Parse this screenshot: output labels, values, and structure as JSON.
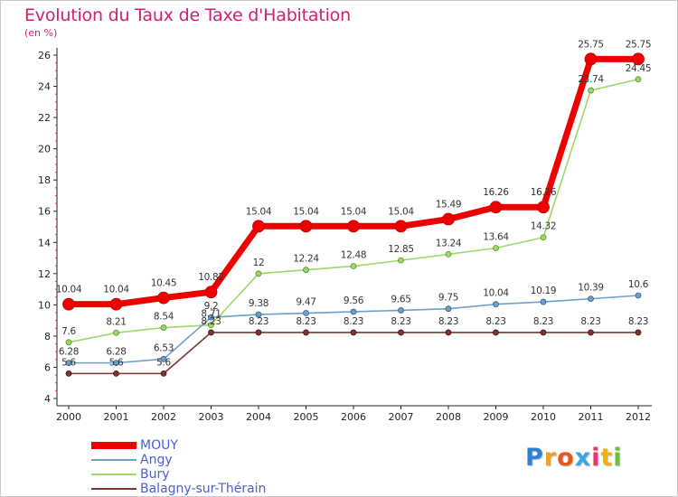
{
  "header": {
    "title": "Evolution du Taux de Taxe d'Habitation",
    "subtitle": "(en %)"
  },
  "chart_data": {
    "type": "line",
    "title": "Evolution du Taux de Taxe d'Habitation",
    "ylabel": "(en %)",
    "xlabel": "",
    "ylim": [
      4,
      26
    ],
    "yticks": [
      4,
      6,
      8,
      10,
      12,
      14,
      16,
      18,
      20,
      22,
      24,
      26
    ],
    "grid": false,
    "legend_position": "bottom-left",
    "categories": [
      "2000",
      "2001",
      "2002",
      "2003",
      "2004",
      "2005",
      "2006",
      "2007",
      "2008",
      "2009",
      "2010",
      "2011",
      "2012"
    ],
    "series": [
      {
        "name": "MOUY",
        "color": "#ee0000",
        "values": [
          10.04,
          10.04,
          10.45,
          10.82,
          15.04,
          15.04,
          15.04,
          15.04,
          15.49,
          16.26,
          16.26,
          25.75,
          25.75
        ],
        "labels": [
          "10.04",
          "10.04",
          "10.45",
          "10.82",
          "15.04",
          "15.04",
          "15.04",
          "15.04",
          "15.49",
          "16.26",
          "16.26",
          "25.75",
          "25.75"
        ]
      },
      {
        "name": "Angy",
        "color": "#6f9ec9",
        "values": [
          6.28,
          6.28,
          6.53,
          9.2,
          9.38,
          9.47,
          9.56,
          9.65,
          9.75,
          10.04,
          10.19,
          10.39,
          10.6
        ],
        "labels": [
          "6.28",
          "6.28",
          "6.53",
          "9.2",
          "9.38",
          "9.47",
          "9.56",
          "9.65",
          "9.75",
          "10.04",
          "10.19",
          "10.39",
          "10.6"
        ]
      },
      {
        "name": "Bury",
        "color": "#9ed86a",
        "values": [
          7.6,
          8.21,
          8.54,
          8.71,
          12,
          12.24,
          12.48,
          12.85,
          13.24,
          13.64,
          14.32,
          23.74,
          24.45
        ],
        "labels": [
          "7.6",
          "8.21",
          "8.54",
          "8.71",
          "12",
          "12.24",
          "12.48",
          "12.85",
          "13.24",
          "13.64",
          "14.32",
          "23.74",
          "24.45"
        ]
      },
      {
        "name": "Balagny-sur-Thérain",
        "color": "#7b3535",
        "values": [
          5.6,
          5.6,
          5.6,
          8.23,
          8.23,
          8.23,
          8.23,
          8.23,
          8.23,
          8.23,
          8.23,
          8.23,
          8.23
        ],
        "labels": [
          "5.6",
          "5.6",
          "5.6",
          "8.23",
          "8.23",
          "8.23",
          "8.23",
          "8.23",
          "8.23",
          "8.23",
          "8.23",
          "8.23",
          "8.23"
        ]
      }
    ]
  },
  "legend": {
    "items": [
      {
        "label": "MOUY",
        "color": "#ee0000"
      },
      {
        "label": "Angy",
        "color": "#6f9ec9"
      },
      {
        "label": "Bury",
        "color": "#9ed86a"
      },
      {
        "label": "Balagny-sur-Thérain",
        "color": "#7b3535"
      }
    ]
  },
  "logo": {
    "letters": [
      {
        "char": "P",
        "color": "#2e7fd6"
      },
      {
        "char": "r",
        "color": "#e8a12a"
      },
      {
        "char": "o",
        "color": "#e05a1e"
      },
      {
        "char": "x",
        "color": "#3aa6e0"
      },
      {
        "char": "i",
        "color": "#e23a6a"
      },
      {
        "char": "t",
        "color": "#f0b400"
      },
      {
        "char": "i",
        "color": "#6cbf3a"
      }
    ]
  }
}
